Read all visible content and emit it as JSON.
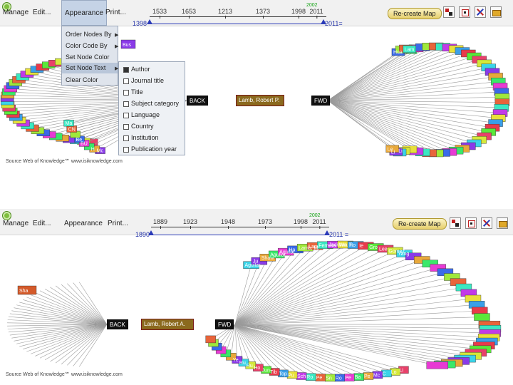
{
  "top": {
    "menu": {
      "items": [
        "Manage",
        "Edit...",
        "Appearance",
        "Print..."
      ],
      "active": "Appearance",
      "recreate": "Re-create Map"
    },
    "timeline": {
      "ticks": [
        "1533",
        "1653",
        "1213",
        "1373",
        "1998",
        "2011"
      ],
      "flag": "2002",
      "start": "1398",
      "end": "2011="
    },
    "dropdown": [
      "Order Nodes By",
      "Color Code By",
      "Set Node Color",
      "Set Node Text",
      "Clear Color"
    ],
    "submenu": [
      "Author",
      "Journal title",
      "Title",
      "Subject category",
      "Language",
      "Country",
      "Institution",
      "Publication year"
    ],
    "center": {
      "back": "BACK",
      "node": "Lamb, Robert P.",
      "fwd": "FWD"
    },
    "source": "Source Web of Knowledge℠ www.isiknowledge.com",
    "left_labels": [
      "Mc",
      "H",
      "BU",
      "Be",
      "CN",
      "Ma"
    ],
    "right_labels": [
      "Hua",
      "Lam",
      "Li",
      "Li",
      "Le"
    ],
    "top_left_label": "Bus"
  },
  "bottom": {
    "menu": {
      "items": [
        "Manage",
        "Edit...",
        "Appearance",
        "Print..."
      ],
      "recreate": "Re-create Map"
    },
    "timeline": {
      "ticks": [
        "1889",
        "1923",
        "1948",
        "1973",
        "1998",
        "2011"
      ],
      "flag": "2002",
      "start": "1890",
      "end": "2011 ="
    },
    "center": {
      "back": "BACK",
      "node": "Lamb, Robert A.",
      "fwd": "FWD"
    },
    "source": "Source Web of Knowledge℠ www.isiknowledge.com",
    "left_label": "Sha",
    "top_labels": [
      "Aguilar",
      "Ju",
      "Shaw",
      "Aguilar",
      "Aguilar",
      "Ho",
      "Lamb, M.",
      "Lam",
      "Ferreira",
      "Jackson",
      "Wu, T.",
      "Ho",
      "Ie",
      "Gro",
      "Lee",
      "Gomez",
      "Yang"
    ],
    "bottom_labels": [
      "Ye",
      "Ru",
      "Ru",
      "Ho",
      "Jun",
      "Tib",
      "Top",
      "Pu",
      "Sch",
      "Ro",
      "Pe",
      "Sn",
      "Ro",
      "Pe",
      "Ba",
      "Pe",
      "Mc",
      "C",
      "Lo",
      "Li"
    ]
  }
}
